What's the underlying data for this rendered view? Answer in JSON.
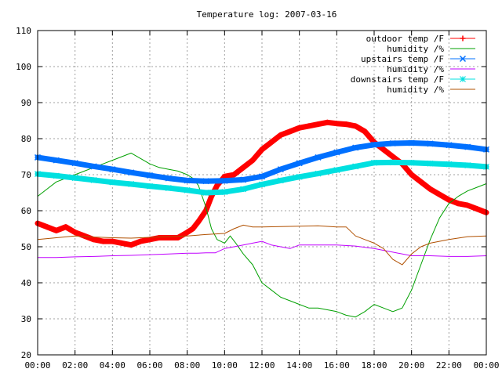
{
  "chart_data": {
    "type": "line",
    "title": "Temperature log: 2007-03-16",
    "xlabel": "",
    "ylabel": "",
    "xlim": [
      0,
      24
    ],
    "ylim": [
      20,
      110
    ],
    "grid": true,
    "legend_position": "top-right",
    "x_ticks": [
      {
        "value": 0,
        "label": "00:00"
      },
      {
        "value": 2,
        "label": "02:00"
      },
      {
        "value": 4,
        "label": "04:00"
      },
      {
        "value": 6,
        "label": "06:00"
      },
      {
        "value": 8,
        "label": "08:00"
      },
      {
        "value": 10,
        "label": "10:00"
      },
      {
        "value": 12,
        "label": "12:00"
      },
      {
        "value": 14,
        "label": "14:00"
      },
      {
        "value": 16,
        "label": "16:00"
      },
      {
        "value": 18,
        "label": "18:00"
      },
      {
        "value": 20,
        "label": "20:00"
      },
      {
        "value": 22,
        "label": "22:00"
      },
      {
        "value": 24,
        "label": "00:00"
      }
    ],
    "y_ticks": [
      20,
      30,
      40,
      50,
      60,
      70,
      80,
      90,
      100,
      110
    ],
    "series": [
      {
        "name": "outdoor temp /F",
        "color": "#ff0000",
        "style": "line-points-plus",
        "x": [
          0,
          0.5,
          1,
          1.5,
          2,
          2.5,
          3,
          3.5,
          4,
          4.5,
          5,
          5.5,
          6,
          6.5,
          7,
          7.5,
          8,
          8.3,
          8.6,
          9,
          9.3,
          9.6,
          10,
          10.5,
          11,
          11.5,
          12,
          12.5,
          13,
          13.5,
          14,
          14.5,
          15,
          15.5,
          16,
          16.5,
          17,
          17.5,
          18,
          18.5,
          19,
          19.5,
          20,
          20.5,
          21,
          21.5,
          22,
          22.5,
          23,
          23.5,
          24
        ],
        "y": [
          56.5,
          55.5,
          54.5,
          55.5,
          54,
          53,
          52,
          51.5,
          51.5,
          51,
          50.5,
          51.5,
          52,
          52.5,
          52.5,
          52.5,
          54,
          55,
          57,
          60,
          64,
          67,
          69.5,
          70,
          72,
          74,
          77,
          79,
          81,
          82,
          83,
          83.5,
          84,
          84.5,
          84.2,
          84,
          83.5,
          82,
          79,
          77,
          75,
          73,
          70,
          68,
          66,
          64.5,
          63,
          62,
          61.5,
          60.5,
          59.5
        ]
      },
      {
        "name": "humidity /%",
        "color": "#00a000",
        "style": "line",
        "x": [
          0,
          0.5,
          1,
          1.5,
          2,
          2.5,
          3,
          3.5,
          4,
          4.5,
          5,
          5.5,
          6,
          6.5,
          7,
          7.5,
          8,
          8.3,
          8.6,
          9,
          9.3,
          9.6,
          10,
          10.3,
          10.6,
          11,
          11.5,
          12,
          12.5,
          13,
          13.5,
          14,
          14.5,
          15,
          15.5,
          16,
          16.5,
          17,
          17.5,
          18,
          18.5,
          19,
          19.5,
          20,
          20.5,
          21,
          21.5,
          22,
          22.5,
          23,
          23.5,
          24
        ],
        "y": [
          64,
          66,
          68,
          69,
          70,
          71,
          72,
          73,
          74,
          75,
          76,
          74.5,
          73,
          72,
          71.5,
          71,
          70,
          69,
          67,
          61,
          55,
          52,
          51,
          53,
          51,
          48,
          45,
          40,
          38,
          36,
          35,
          34,
          33,
          33,
          32.5,
          32,
          31,
          30.5,
          32,
          34,
          33,
          32,
          33,
          38,
          45,
          52,
          58,
          62,
          64,
          65.5,
          66.5,
          67.5
        ]
      },
      {
        "name": "upstairs temp /F",
        "color": "#0070ff",
        "style": "line-points-x",
        "x": [
          0,
          1,
          2,
          3,
          4,
          5,
          6,
          7,
          8,
          9,
          10,
          11,
          12,
          13,
          14,
          15,
          16,
          17,
          18,
          19,
          20,
          21,
          22,
          23,
          24
        ],
        "y": [
          74.8,
          74,
          73.2,
          72.3,
          71.5,
          70.6,
          69.8,
          69,
          68.4,
          68.2,
          68.3,
          68.6,
          69.5,
          71.5,
          73.2,
          74.8,
          76.2,
          77.5,
          78.3,
          78.7,
          78.8,
          78.6,
          78.2,
          77.7,
          77
        ]
      },
      {
        "name": "humidity /%",
        "color": "#c000ff",
        "style": "line",
        "x": [
          0,
          1,
          2,
          3,
          4,
          5,
          6,
          7,
          8,
          8.5,
          9,
          9.5,
          10,
          10.5,
          11,
          11.5,
          12,
          12.5,
          13,
          13.5,
          14,
          15,
          16,
          17,
          18,
          19,
          20,
          21,
          22,
          23,
          24
        ],
        "y": [
          47,
          47,
          47.2,
          47.3,
          47.5,
          47.6,
          47.8,
          48,
          48.2,
          48.2,
          48.3,
          48.3,
          49.5,
          50,
          50.5,
          51,
          51.5,
          50.5,
          50,
          49.5,
          50.5,
          50.5,
          50.5,
          50.2,
          49.5,
          48.5,
          47.5,
          47.5,
          47.3,
          47.3,
          47.5
        ]
      },
      {
        "name": "downstairs temp /F",
        "color": "#00e0e0",
        "style": "line-points-star",
        "x": [
          0,
          1,
          2,
          3,
          4,
          5,
          6,
          7,
          8,
          9,
          10,
          11,
          12,
          13,
          14,
          15,
          16,
          17,
          18,
          19,
          20,
          21,
          22,
          23,
          24
        ],
        "y": [
          70.2,
          69.7,
          69.1,
          68.5,
          67.9,
          67.4,
          66.8,
          66.3,
          65.7,
          65,
          65.2,
          66,
          67.3,
          68.4,
          69.4,
          70.3,
          71.3,
          72.3,
          73.3,
          73.4,
          73.3,
          73.1,
          72.9,
          72.6,
          72.2
        ]
      },
      {
        "name": "humidity /%",
        "color": "#b05000",
        "style": "line",
        "x": [
          0,
          1,
          2,
          3,
          4,
          5,
          6,
          7,
          8,
          9,
          10,
          10.5,
          11,
          11.5,
          12,
          13,
          14,
          15,
          16,
          16.5,
          17,
          17.5,
          18,
          18.5,
          19,
          19.5,
          20,
          20.5,
          21,
          22,
          23,
          24
        ],
        "y": [
          52,
          52.5,
          53,
          52.7,
          52.5,
          52.4,
          52.6,
          52.8,
          53,
          53.4,
          53.7,
          55,
          56,
          55.5,
          55.5,
          55.6,
          55.7,
          55.8,
          55.5,
          55.5,
          53,
          52,
          51,
          49.5,
          46.5,
          45,
          48,
          50,
          51,
          52,
          52.8,
          53
        ]
      }
    ]
  }
}
